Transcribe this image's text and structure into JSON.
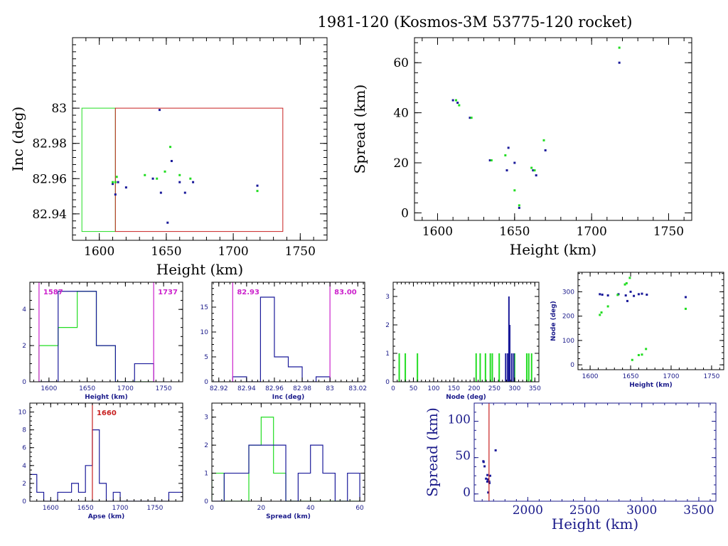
{
  "figure": {
    "title": "1981-120 (Kosmos-3M 53775-120 rocket)",
    "colors": {
      "frame": "#000000",
      "blue": "#1a1a9a",
      "green": "#22dd22",
      "red": "#c82020",
      "magenta": "#cc22cc",
      "navy": "#1a1a8a"
    }
  },
  "chart_data": [
    {
      "id": "inc_vs_height",
      "type": "scatter",
      "xlabel": "Height (km)",
      "ylabel": "Inc (deg)",
      "xlim": [
        1580,
        1770
      ],
      "ylim": [
        82.925,
        83.04
      ],
      "xticks": [
        1600,
        1650,
        1700,
        1750
      ],
      "yticks": [
        82.94,
        82.96,
        82.98,
        83
      ],
      "ytick_labels": [
        "82.94",
        "82.96",
        "82.98",
        "83"
      ],
      "rects": [
        {
          "x0": 1587,
          "x1": 1612,
          "y0": 82.93,
          "y1": 83.0,
          "color": "green"
        },
        {
          "x0": 1612,
          "x1": 1737,
          "y0": 82.93,
          "y1": 83.0,
          "color": "red"
        }
      ],
      "series": [
        {
          "color": "blue",
          "points": [
            [
              1645,
              82.999
            ],
            [
              1651,
              82.935
            ],
            [
              1654,
              82.97
            ],
            [
              1640,
              82.96
            ],
            [
              1620,
              82.955
            ],
            [
              1612,
              82.951
            ],
            [
              1614,
              82.958
            ],
            [
              1646,
              82.952
            ],
            [
              1660,
              82.958
            ],
            [
              1664,
              82.952
            ],
            [
              1670,
              82.958
            ],
            [
              1718,
              82.956
            ],
            [
              1610,
              82.957
            ]
          ]
        },
        {
          "color": "green",
          "points": [
            [
              1612,
              82.958
            ],
            [
              1613,
              82.961
            ],
            [
              1634,
              82.962
            ],
            [
              1643,
              82.96
            ],
            [
              1649,
              82.964
            ],
            [
              1653,
              82.978
            ],
            [
              1660,
              82.962
            ],
            [
              1668,
              82.96
            ],
            [
              1718,
              82.953
            ],
            [
              1610,
              82.958
            ]
          ]
        }
      ]
    },
    {
      "id": "spread_vs_height",
      "type": "scatter",
      "xlabel": "Height (km)",
      "ylabel": "Spread (km)",
      "xlim": [
        1585,
        1765
      ],
      "ylim": [
        -3,
        70
      ],
      "xticks": [
        1600,
        1650,
        1700,
        1750
      ],
      "yticks": [
        0,
        20,
        40,
        60
      ],
      "series": [
        {
          "color": "blue",
          "points": [
            [
              1610,
              45
            ],
            [
              1613,
              44
            ],
            [
              1621,
              38
            ],
            [
              1634,
              21
            ],
            [
              1645,
              17
            ],
            [
              1646,
              26
            ],
            [
              1650,
              20
            ],
            [
              1653,
              2
            ],
            [
              1662,
              17
            ],
            [
              1664,
              15
            ],
            [
              1670,
              25
            ],
            [
              1718,
              60
            ]
          ]
        },
        {
          "color": "green",
          "points": [
            [
              1612,
              45
            ],
            [
              1614,
              43
            ],
            [
              1622,
              38
            ],
            [
              1635,
              21
            ],
            [
              1644,
              23
            ],
            [
              1650,
              9
            ],
            [
              1653,
              3
            ],
            [
              1661,
              18
            ],
            [
              1663,
              17
            ],
            [
              1669,
              29
            ],
            [
              1718,
              66
            ]
          ]
        }
      ]
    },
    {
      "id": "hist_height",
      "type": "histogram",
      "xlabel": "Height (km)",
      "xlim": [
        1575,
        1775
      ],
      "ylim": [
        0,
        5.5
      ],
      "xticks": [
        1600,
        1650,
        1700,
        1750
      ],
      "yticks": [
        0,
        2,
        4
      ],
      "bin_edges": [
        1587,
        1612,
        1637,
        1662,
        1687,
        1712,
        1737
      ],
      "series": [
        {
          "color": "green",
          "values": [
            2,
            3,
            5,
            2,
            0,
            0
          ]
        },
        {
          "color": "blue",
          "values": [
            0,
            5,
            5,
            2,
            0,
            1
          ]
        }
      ],
      "vlines": [
        {
          "x": 1587,
          "color": "magenta",
          "label": "1587"
        },
        {
          "x": 1737,
          "color": "magenta",
          "label": "1737"
        }
      ]
    },
    {
      "id": "hist_inc",
      "type": "histogram",
      "xlabel": "Inc (deg)",
      "xlim": [
        82.915,
        83.025
      ],
      "ylim": [
        0,
        20
      ],
      "xticks": [
        82.92,
        82.94,
        82.96,
        82.98,
        83,
        83.02
      ],
      "xtick_labels": [
        "82.92",
        "82.94",
        "82.96",
        "82.98",
        "83",
        "83.02"
      ],
      "yticks": [
        0,
        5,
        10,
        15
      ],
      "bin_edges": [
        82.93,
        82.94,
        82.95,
        82.96,
        82.97,
        82.98,
        82.99,
        83.0
      ],
      "series": [
        {
          "color": "blue",
          "values": [
            1,
            0,
            17,
            5,
            3,
            0,
            1
          ]
        }
      ],
      "vlines": [
        {
          "x": 82.93,
          "color": "magenta",
          "label": "82.93"
        },
        {
          "x": 83.0,
          "color": "magenta",
          "label": "83.00"
        }
      ]
    },
    {
      "id": "hist_node",
      "type": "histogram",
      "xlabel": "Node (deg)",
      "xlim": [
        0,
        360
      ],
      "ylim": [
        0,
        3.5
      ],
      "xticks": [
        0,
        50,
        100,
        150,
        200,
        250,
        300,
        350
      ],
      "yticks": [
        0,
        1,
        2,
        3
      ],
      "sticks": [
        {
          "color": "green",
          "x": [
            15,
            30,
            60,
            205,
            215,
            228,
            240,
            245,
            262,
            300,
            330,
            335,
            342
          ],
          "value": 1
        },
        {
          "color": "blue",
          "x": [
            278,
            283,
            293,
            298
          ],
          "value": 1
        },
        {
          "color": "blue",
          "x": [
            286
          ],
          "value": 3
        },
        {
          "color": "blue",
          "x": [
            288
          ],
          "value": 2
        }
      ]
    },
    {
      "id": "node_vs_height",
      "type": "scatter",
      "xlabel": "Height (km)",
      "ylabel": "Node (deg)",
      "xlim": [
        1585,
        1765
      ],
      "ylim": [
        -20,
        380
      ],
      "xticks": [
        1600,
        1650,
        1700,
        1750
      ],
      "yticks": [
        0,
        100,
        200,
        300
      ],
      "series": [
        {
          "color": "blue",
          "points": [
            [
              1612,
              290
            ],
            [
              1615,
              288
            ],
            [
              1622,
              285
            ],
            [
              1635,
              290
            ],
            [
              1644,
              285
            ],
            [
              1646,
              262
            ],
            [
              1650,
              300
            ],
            [
              1654,
              283
            ],
            [
              1660,
              290
            ],
            [
              1664,
              292
            ],
            [
              1670,
              288
            ],
            [
              1718,
              278
            ]
          ]
        },
        {
          "color": "green",
          "points": [
            [
              1612,
              205
            ],
            [
              1614,
              215
            ],
            [
              1622,
              240
            ],
            [
              1634,
              287
            ],
            [
              1643,
              330
            ],
            [
              1645,
              335
            ],
            [
              1649,
              357
            ],
            [
              1652,
              20
            ],
            [
              1660,
              40
            ],
            [
              1664,
              42
            ],
            [
              1669,
              65
            ],
            [
              1718,
              230
            ]
          ]
        }
      ]
    },
    {
      "id": "hist_apse",
      "type": "histogram",
      "xlabel": "Apse (km)",
      "xlim": [
        1570,
        1790
      ],
      "ylim": [
        0,
        11
      ],
      "xticks": [
        1600,
        1650,
        1700,
        1750
      ],
      "yticks": [
        0,
        2,
        4,
        6,
        8,
        10
      ],
      "bin_edges": [
        1570,
        1580,
        1590,
        1600,
        1610,
        1620,
        1630,
        1640,
        1650,
        1660,
        1670,
        1680,
        1690,
        1700,
        1710,
        1720,
        1730,
        1740,
        1750,
        1760,
        1770,
        1780,
        1790
      ],
      "series": [
        {
          "color": "blue",
          "values": [
            3,
            1,
            0,
            0,
            1,
            1,
            2,
            1,
            4,
            8,
            2,
            0,
            1,
            0,
            0,
            0,
            0,
            0,
            0,
            0,
            1,
            1
          ]
        }
      ],
      "vlines": [
        {
          "x": 1660,
          "color": "red",
          "label": "1660"
        }
      ]
    },
    {
      "id": "hist_spread",
      "type": "histogram",
      "xlabel": "Spread (km)",
      "xlim": [
        0,
        62
      ],
      "ylim": [
        0,
        3.5
      ],
      "xticks": [
        0,
        20,
        40,
        60
      ],
      "yticks": [
        0,
        1,
        2,
        3
      ],
      "bin_edges": [
        0,
        5,
        10,
        15,
        20,
        25,
        30,
        35,
        40,
        45,
        50,
        55,
        60
      ],
      "series": [
        {
          "color": "green",
          "values": [
            1,
            0,
            0,
            2,
            3,
            1,
            0,
            0,
            0,
            0,
            0,
            0
          ]
        },
        {
          "color": "blue",
          "values": [
            0,
            1,
            1,
            2,
            2,
            2,
            0,
            1,
            2,
            1,
            0,
            1
          ]
        }
      ]
    },
    {
      "id": "spread_vs_height_wide",
      "type": "scatter",
      "xlabel": "Height (km)",
      "ylabel": "Spread (km)",
      "xlim": [
        1530,
        3650
      ],
      "ylim": [
        -10,
        125
      ],
      "xticks": [
        2000,
        2500,
        3000,
        3500
      ],
      "yticks": [
        0,
        50,
        100
      ],
      "series": [
        {
          "color": "blue",
          "points": [
            [
              1610,
              45
            ],
            [
              1613,
              44
            ],
            [
              1621,
              38
            ],
            [
              1634,
              21
            ],
            [
              1645,
              17
            ],
            [
              1646,
              26
            ],
            [
              1650,
              20
            ],
            [
              1653,
              2
            ],
            [
              1662,
              17
            ],
            [
              1664,
              15
            ],
            [
              1670,
              25
            ],
            [
              1718,
              60
            ]
          ]
        }
      ],
      "vlines": [
        {
          "x": 1660,
          "color": "red"
        }
      ]
    }
  ]
}
